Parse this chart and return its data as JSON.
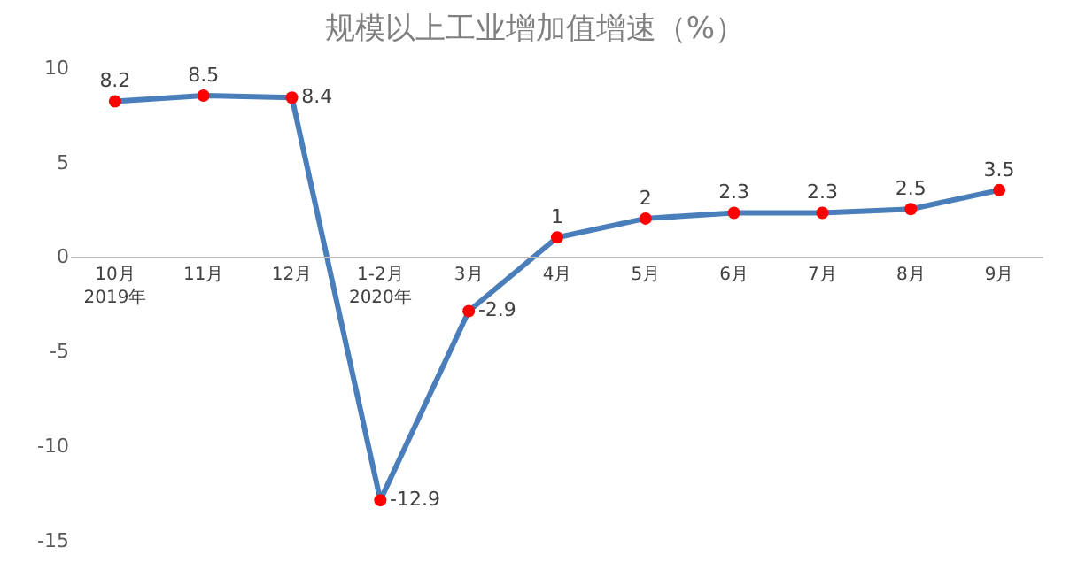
{
  "chart_data": {
    "type": "line",
    "title": "规模以上工业增加值增速（%）",
    "categories": [
      "10月\n2019年",
      "11月",
      "12月",
      "1-2月\n2020年",
      "3月",
      "4月",
      "5月",
      "6月",
      "7月",
      "8月",
      "9月"
    ],
    "series": [
      {
        "color": "#4a7ebb",
        "values": [
          8.2,
          8.5,
          8.4,
          -12.9,
          -2.9,
          1,
          2,
          2.3,
          2.3,
          2.5,
          3.5
        ]
      }
    ],
    "ylim": [
      -15,
      10
    ],
    "yticks": [
      -15,
      -10,
      -5,
      0,
      5,
      10
    ],
    "grid": false,
    "legend": false,
    "marker": "circle",
    "line_style": "solid",
    "data_labels": true
  }
}
